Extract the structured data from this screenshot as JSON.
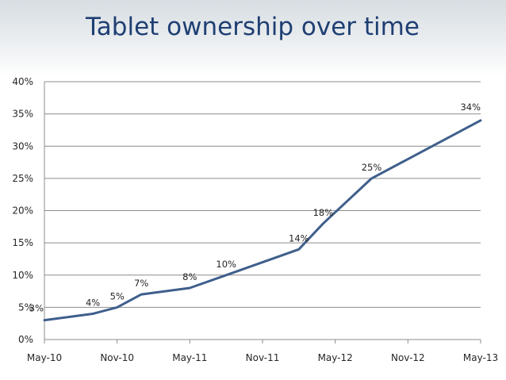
{
  "slide": {
    "title": "Tablet ownership over time"
  },
  "chart_data": {
    "type": "line",
    "title": "",
    "xlabel": "",
    "ylabel": "",
    "y_ticks": [
      "0%",
      "5%",
      "10%",
      "15%",
      "20%",
      "25%",
      "30%",
      "35%",
      "40%"
    ],
    "ylim": [
      0,
      40
    ],
    "x_ticks": [
      "May-10",
      "Nov-10",
      "May-11",
      "Nov-11",
      "May-12",
      "Nov-12",
      "May-13"
    ],
    "xlim": [
      "2010-05",
      "2013-05"
    ],
    "grid": "horizontal",
    "legend": "none",
    "line_color": "#3f5f8c",
    "series": [
      {
        "points": [
          {
            "x": "2010-05",
            "y": 3,
            "label": "3%"
          },
          {
            "x": "2010-09",
            "y": 4,
            "label": "4%"
          },
          {
            "x": "2010-11",
            "y": 5,
            "label": "5%"
          },
          {
            "x": "2011-01",
            "y": 7,
            "label": "7%"
          },
          {
            "x": "2011-05",
            "y": 8,
            "label": "8%"
          },
          {
            "x": "2011-08",
            "y": 10,
            "label": "10%"
          },
          {
            "x": "2012-02",
            "y": 14,
            "label": "14%"
          },
          {
            "x": "2012-04",
            "y": 18,
            "label": "18%"
          },
          {
            "x": "2012-08",
            "y": 25,
            "label": "25%"
          },
          {
            "x": "2013-05",
            "y": 34,
            "label": "34%"
          }
        ]
      }
    ]
  }
}
